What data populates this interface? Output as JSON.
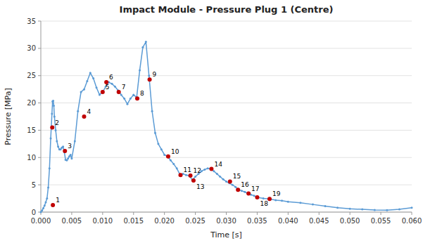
{
  "chart_data": {
    "type": "line",
    "title": "Impact Module - Pressure Plug 1 (Centre)",
    "x_label": "Time [s]",
    "y_label": "Pressure [MPa]",
    "xlim": [
      0.0,
      0.06
    ],
    "ylim": [
      0.0,
      35.0
    ],
    "xticks": [
      {
        "value": 0.0,
        "label": "0.000"
      },
      0.005,
      {
        "value": 0.01,
        "label": "0.010"
      },
      0.015,
      {
        "value": 0.02,
        "label": "0.020"
      },
      0.025,
      {
        "value": 0.03,
        "label": "0.030"
      },
      0.035,
      {
        "value": 0.04,
        "label": "0.040"
      },
      0.045,
      {
        "value": 0.05,
        "label": "0.050"
      },
      0.055,
      {
        "value": 0.06,
        "label": "0.060"
      }
    ],
    "yticks": [
      0,
      5,
      10,
      15,
      20,
      25,
      30,
      35
    ],
    "grid": "y",
    "series": [
      {
        "type": "line",
        "color": "#5b9bd5",
        "marker": "circle",
        "x": [
          0.0,
          0.0002,
          0.0004,
          0.0006,
          0.0008,
          0.001,
          0.0012,
          0.0014,
          0.0016,
          0.0018,
          0.0019,
          0.002,
          0.0021,
          0.0022,
          0.0024,
          0.0026,
          0.0028,
          0.003,
          0.0032,
          0.0034,
          0.0036,
          0.0038,
          0.004,
          0.0042,
          0.0044,
          0.0046,
          0.0048,
          0.005,
          0.0055,
          0.006,
          0.0065,
          0.007,
          0.0075,
          0.008,
          0.0085,
          0.009,
          0.0095,
          0.01,
          0.0105,
          0.011,
          0.0115,
          0.012,
          0.0125,
          0.013,
          0.0135,
          0.014,
          0.0145,
          0.015,
          0.0155,
          0.016,
          0.0165,
          0.017,
          0.0175,
          0.018,
          0.0185,
          0.019,
          0.0195,
          0.02,
          0.0205,
          0.021,
          0.0215,
          0.022,
          0.0225,
          0.023,
          0.0235,
          0.024,
          0.0245,
          0.025,
          0.0255,
          0.026,
          0.0265,
          0.027,
          0.0275,
          0.028,
          0.0285,
          0.029,
          0.0295,
          0.03,
          0.0305,
          0.031,
          0.0315,
          0.032,
          0.0325,
          0.033,
          0.0335,
          0.034,
          0.0345,
          0.035,
          0.036,
          0.037,
          0.038,
          0.039,
          0.04,
          0.042,
          0.044,
          0.046,
          0.048,
          0.05,
          0.052,
          0.054,
          0.056,
          0.058,
          0.06
        ],
        "values": [
          0.0,
          0.3,
          0.7,
          1.2,
          1.8,
          2.5,
          4.5,
          8.0,
          13.5,
          18.0,
          20.3,
          20.4,
          19.5,
          17.5,
          15.0,
          13.0,
          12.0,
          11.5,
          11.5,
          11.8,
          12.0,
          11.0,
          9.6,
          9.5,
          9.8,
          10.2,
          10.5,
          9.8,
          13.0,
          18.5,
          22.0,
          22.5,
          24.0,
          25.5,
          24.5,
          22.8,
          21.5,
          22.0,
          23.0,
          23.8,
          23.5,
          23.0,
          22.3,
          21.5,
          20.8,
          19.8,
          20.8,
          21.5,
          21.0,
          26.0,
          30.2,
          31.2,
          25.0,
          18.5,
          14.5,
          12.5,
          11.5,
          10.5,
          10.2,
          9.5,
          8.8,
          8.0,
          6.9,
          7.0,
          6.8,
          6.7,
          5.9,
          6.5,
          7.0,
          7.5,
          7.8,
          8.0,
          7.9,
          7.5,
          7.0,
          6.5,
          6.0,
          5.6,
          5.3,
          5.0,
          4.6,
          4.1,
          3.9,
          3.7,
          3.4,
          3.2,
          3.0,
          2.7,
          2.5,
          2.4,
          2.2,
          2.1,
          1.9,
          1.7,
          1.4,
          1.1,
          0.8,
          0.6,
          0.5,
          0.4,
          0.35,
          0.5,
          0.8
        ]
      },
      {
        "type": "scatter",
        "color": "#c00000",
        "marker": "circle",
        "x": [
          0.00195,
          0.00185,
          0.0039,
          0.007,
          0.01,
          0.0106,
          0.0126,
          0.0156,
          0.0176,
          0.0206,
          0.0226,
          0.0242,
          0.0247,
          0.0276,
          0.0306,
          0.0319,
          0.0336,
          0.035,
          0.037
        ],
        "values": [
          1.3,
          15.5,
          11.2,
          17.5,
          22.0,
          23.8,
          22.0,
          20.8,
          24.3,
          10.2,
          6.8,
          6.7,
          5.8,
          7.9,
          5.6,
          4.1,
          3.4,
          2.7,
          2.4
        ],
        "labels": [
          "1",
          "2",
          "3",
          "4",
          "5",
          "6",
          "7",
          "8",
          "9",
          "10",
          "11",
          "12",
          "13",
          "14",
          "15",
          "16",
          "17",
          "18",
          "19"
        ]
      }
    ]
  }
}
